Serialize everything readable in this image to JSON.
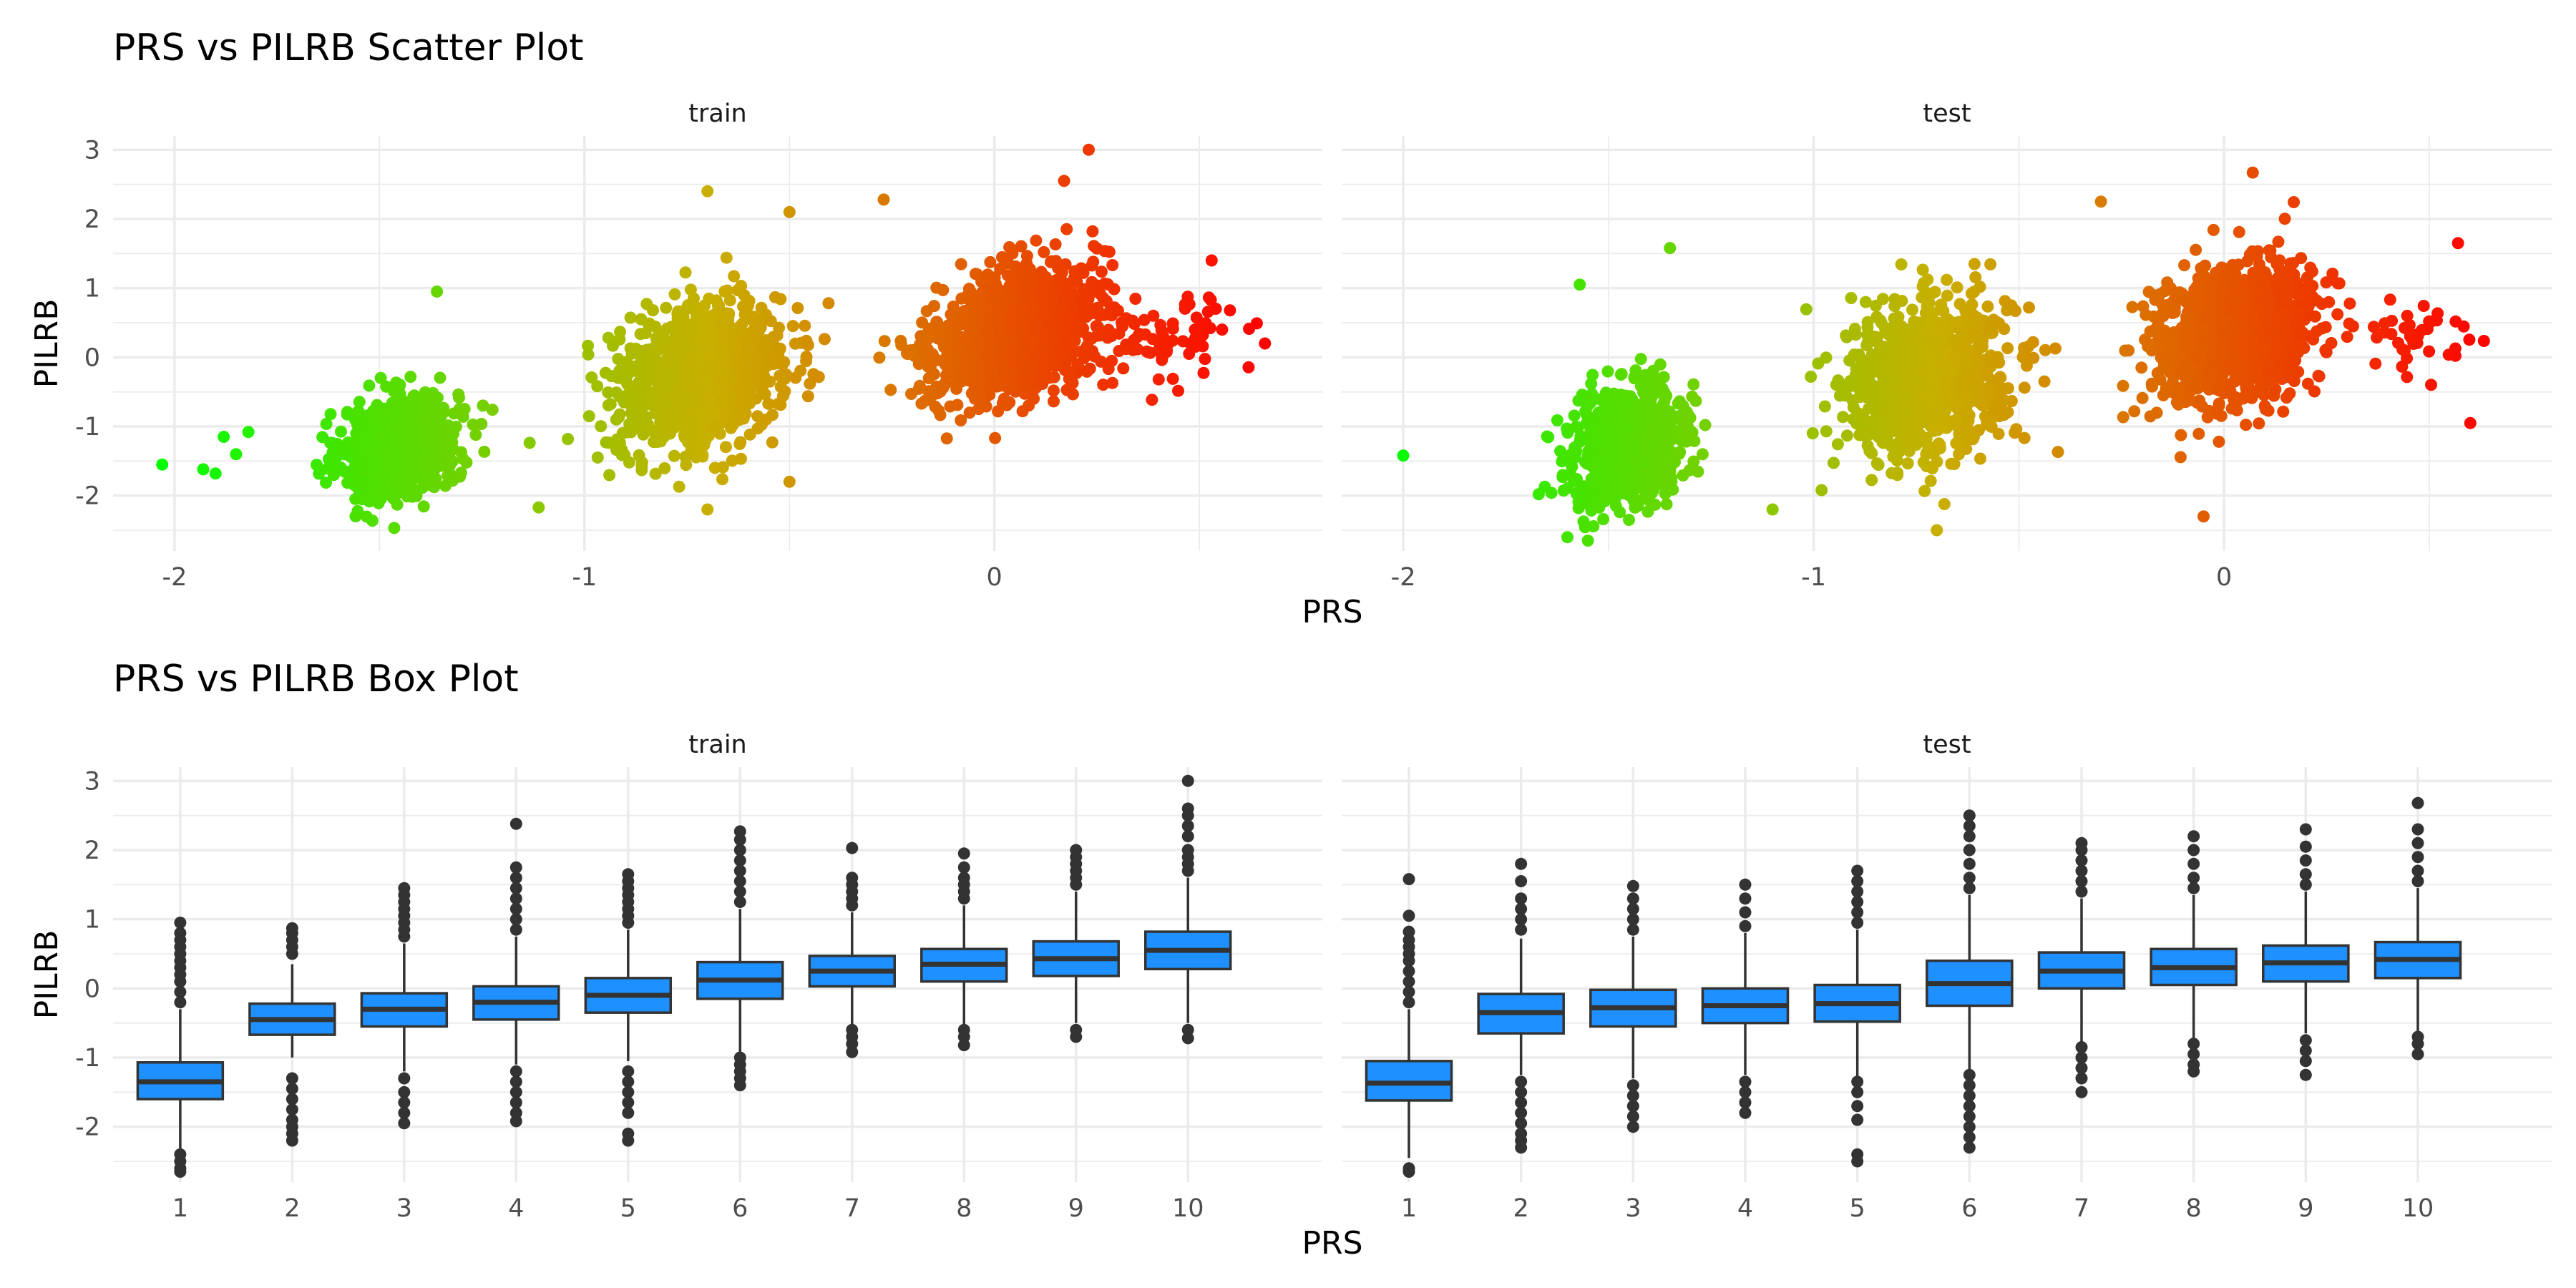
{
  "colors": {
    "low": "#00ff00",
    "high": "#ff0000",
    "box_fill": "#1e90ff",
    "box_line": "#333333",
    "grid": "#ebebeb"
  },
  "chart_data": [
    {
      "type": "scatter",
      "title": "PRS vs PILRB Scatter Plot",
      "xlabel": "PRS",
      "ylabel": "PILRB",
      "facets": [
        "train",
        "test"
      ],
      "xlim": [
        -2.15,
        0.8
      ],
      "ylim": [
        -2.8,
        3.2
      ],
      "xticks": [
        -2,
        -1,
        0
      ],
      "xtick_labels": [
        "-2",
        "-1",
        "0"
      ],
      "yticks": [
        -2,
        -1,
        0,
        1,
        2,
        3
      ],
      "ytick_labels": [
        "-2",
        "-1",
        "0",
        "1",
        "2",
        "3"
      ],
      "color_scale": "green-to-red by PRS",
      "grid": true,
      "series": [
        {
          "facet": "train",
          "clusters": [
            {
              "x_center": -1.45,
              "y_center": -1.3,
              "x_sd": 0.07,
              "y_sd": 0.35,
              "n": 900
            },
            {
              "x_center": -0.72,
              "y_center": -0.3,
              "x_sd": 0.1,
              "y_sd": 0.5,
              "n": 1100
            },
            {
              "x_center": 0.05,
              "y_center": 0.35,
              "x_sd": 0.1,
              "y_sd": 0.45,
              "n": 1200
            },
            {
              "x_center": 0.45,
              "y_center": 0.3,
              "x_sd": 0.08,
              "y_sd": 0.3,
              "n": 70
            }
          ],
          "outliers": [
            [
              -2.03,
              -1.55
            ],
            [
              -1.93,
              -1.62
            ],
            [
              -1.9,
              -1.68
            ],
            [
              -1.88,
              -1.15
            ],
            [
              -1.85,
              -1.4
            ],
            [
              -1.82,
              -1.08
            ],
            [
              -1.36,
              0.95
            ],
            [
              -0.7,
              2.4
            ],
            [
              -0.5,
              2.1
            ],
            [
              -0.27,
              2.28
            ],
            [
              0.23,
              3.0
            ],
            [
              0.17,
              2.55
            ],
            [
              0.53,
              1.4
            ],
            [
              0.66,
              0.2
            ],
            [
              -0.5,
              -1.8
            ],
            [
              -0.7,
              -2.2
            ]
          ]
        },
        {
          "facet": "test",
          "clusters": [
            {
              "x_center": -1.45,
              "y_center": -1.25,
              "x_sd": 0.07,
              "y_sd": 0.4,
              "n": 700
            },
            {
              "x_center": -0.72,
              "y_center": -0.3,
              "x_sd": 0.1,
              "y_sd": 0.55,
              "n": 900
            },
            {
              "x_center": 0.02,
              "y_center": 0.3,
              "x_sd": 0.1,
              "y_sd": 0.5,
              "n": 1000
            },
            {
              "x_center": 0.45,
              "y_center": 0.3,
              "x_sd": 0.07,
              "y_sd": 0.3,
              "n": 40
            }
          ],
          "outliers": [
            [
              -2.0,
              -1.42
            ],
            [
              -1.57,
              1.05
            ],
            [
              -1.35,
              1.58
            ],
            [
              -1.67,
              -1.98
            ],
            [
              -1.6,
              -2.6
            ],
            [
              -1.55,
              -2.65
            ],
            [
              -1.45,
              -2.35
            ],
            [
              -0.3,
              2.25
            ],
            [
              0.07,
              2.67
            ],
            [
              0.57,
              1.65
            ],
            [
              0.6,
              -0.95
            ],
            [
              -0.05,
              -2.3
            ],
            [
              -0.7,
              -2.5
            ],
            [
              -1.1,
              -2.2
            ]
          ]
        }
      ]
    },
    {
      "type": "box",
      "title": "PRS vs PILRB Box Plot",
      "xlabel": "PRS",
      "ylabel": "PILRB",
      "facets": [
        "train",
        "test"
      ],
      "categories": [
        "1",
        "2",
        "3",
        "4",
        "5",
        "6",
        "7",
        "8",
        "9",
        "10"
      ],
      "ylim": [
        -2.8,
        3.2
      ],
      "yticks": [
        -2,
        -1,
        0,
        1,
        2,
        3
      ],
      "ytick_labels": [
        "-2",
        "-1",
        "0",
        "1",
        "2",
        "3"
      ],
      "grid": true,
      "series": [
        {
          "facet": "train",
          "boxes": [
            {
              "q1": -1.6,
              "median": -1.35,
              "q3": -1.07,
              "lower": -2.35,
              "upper": -0.3,
              "outliers": [
                -2.4,
                -2.5,
                -2.6,
                -2.65,
                -0.2,
                -0.05,
                0.1,
                0.2,
                0.3,
                0.4,
                0.5,
                0.6,
                0.7,
                0.8,
                0.95
              ]
            },
            {
              "q1": -0.67,
              "median": -0.45,
              "q3": -0.22,
              "lower": -1.0,
              "upper": 0.35,
              "outliers": [
                -1.3,
                -1.45,
                -1.6,
                -1.75,
                -1.9,
                -2.0,
                -2.1,
                -2.2,
                0.5,
                0.6,
                0.7,
                0.8,
                0.87
              ]
            },
            {
              "q1": -0.55,
              "median": -0.3,
              "q3": -0.07,
              "lower": -1.2,
              "upper": 0.65,
              "outliers": [
                -1.3,
                -1.5,
                -1.65,
                -1.8,
                -1.95,
                0.75,
                0.85,
                0.95,
                1.05,
                1.15,
                1.25,
                1.35,
                1.45
              ]
            },
            {
              "q1": -0.45,
              "median": -0.2,
              "q3": 0.03,
              "lower": -1.1,
              "upper": 0.75,
              "outliers": [
                -1.2,
                -1.35,
                -1.5,
                -1.65,
                -1.8,
                -1.92,
                0.85,
                1.0,
                1.15,
                1.3,
                1.45,
                1.6,
                1.75,
                2.38
              ]
            },
            {
              "q1": -0.35,
              "median": -0.1,
              "q3": 0.15,
              "lower": -1.05,
              "upper": 0.85,
              "outliers": [
                -1.2,
                -1.35,
                -1.5,
                -1.65,
                -1.8,
                -2.1,
                -2.2,
                0.95,
                1.05,
                1.15,
                1.25,
                1.35,
                1.45,
                1.55,
                1.65
              ]
            },
            {
              "q1": -0.15,
              "median": 0.12,
              "q3": 0.38,
              "lower": -0.95,
              "upper": 1.15,
              "outliers": [
                -1.0,
                -1.1,
                -1.2,
                -1.3,
                -1.4,
                1.25,
                1.4,
                1.55,
                1.7,
                1.85,
                2.0,
                2.15,
                2.27
              ]
            },
            {
              "q1": 0.03,
              "median": 0.25,
              "q3": 0.47,
              "lower": -0.55,
              "upper": 1.1,
              "outliers": [
                -0.6,
                -0.7,
                -0.8,
                -0.92,
                1.2,
                1.3,
                1.4,
                1.5,
                1.6,
                2.03
              ]
            },
            {
              "q1": 0.1,
              "median": 0.35,
              "q3": 0.57,
              "lower": -0.55,
              "upper": 1.2,
              "outliers": [
                -0.6,
                -0.7,
                -0.82,
                1.3,
                1.4,
                1.5,
                1.6,
                1.75,
                1.95
              ]
            },
            {
              "q1": 0.18,
              "median": 0.43,
              "q3": 0.68,
              "lower": -0.5,
              "upper": 1.4,
              "outliers": [
                -0.6,
                -0.7,
                1.5,
                1.6,
                1.7,
                1.8,
                1.9,
                2.0
              ]
            },
            {
              "q1": 0.28,
              "median": 0.55,
              "q3": 0.82,
              "lower": -0.5,
              "upper": 1.6,
              "outliers": [
                -0.6,
                -0.72,
                1.7,
                1.8,
                1.9,
                2.0,
                2.2,
                2.35,
                2.5,
                2.6,
                3.0
              ]
            }
          ]
        },
        {
          "facet": "test",
          "boxes": [
            {
              "q1": -1.62,
              "median": -1.37,
              "q3": -1.05,
              "lower": -2.45,
              "upper": -0.3,
              "outliers": [
                -2.6,
                -2.65,
                -0.2,
                -0.05,
                0.1,
                0.25,
                0.4,
                0.5,
                0.6,
                0.7,
                0.82,
                1.05,
                1.58
              ]
            },
            {
              "q1": -0.65,
              "median": -0.35,
              "q3": -0.08,
              "lower": -1.25,
              "upper": 0.72,
              "outliers": [
                -1.35,
                -1.5,
                -1.65,
                -1.8,
                -1.95,
                -2.1,
                -2.2,
                -2.3,
                0.85,
                1.0,
                1.15,
                1.3,
                1.55,
                1.8
              ]
            },
            {
              "q1": -0.55,
              "median": -0.28,
              "q3": -0.02,
              "lower": -1.3,
              "upper": 0.75,
              "outliers": [
                -1.4,
                -1.55,
                -1.7,
                -1.85,
                -2.0,
                0.85,
                1.0,
                1.15,
                1.3,
                1.48
              ]
            },
            {
              "q1": -0.5,
              "median": -0.25,
              "q3": 0.0,
              "lower": -1.25,
              "upper": 0.8,
              "outliers": [
                -1.35,
                -1.5,
                -1.65,
                -1.8,
                0.9,
                1.1,
                1.3,
                1.5
              ]
            },
            {
              "q1": -0.48,
              "median": -0.22,
              "q3": 0.05,
              "lower": -1.3,
              "upper": 0.85,
              "outliers": [
                -1.35,
                -1.5,
                -1.7,
                -1.9,
                -2.4,
                -2.5,
                0.95,
                1.1,
                1.25,
                1.4,
                1.55,
                1.7
              ]
            },
            {
              "q1": -0.25,
              "median": 0.07,
              "q3": 0.4,
              "lower": -1.2,
              "upper": 1.35,
              "outliers": [
                -1.25,
                -1.4,
                -1.55,
                -1.7,
                -1.85,
                -2.0,
                -2.15,
                -2.3,
                1.45,
                1.6,
                1.8,
                2.0,
                2.2,
                2.35,
                2.5
              ]
            },
            {
              "q1": 0.0,
              "median": 0.25,
              "q3": 0.52,
              "lower": -0.8,
              "upper": 1.3,
              "outliers": [
                -0.85,
                -1.0,
                -1.15,
                -1.3,
                -1.5,
                1.4,
                1.55,
                1.7,
                1.85,
                2.0,
                2.1
              ]
            },
            {
              "q1": 0.05,
              "median": 0.3,
              "q3": 0.57,
              "lower": -0.72,
              "upper": 1.35,
              "outliers": [
                -0.8,
                -0.95,
                -1.1,
                -1.2,
                1.45,
                1.6,
                1.8,
                2.0,
                2.2
              ]
            },
            {
              "q1": 0.1,
              "median": 0.37,
              "q3": 0.62,
              "lower": -0.65,
              "upper": 1.4,
              "outliers": [
                -0.75,
                -0.9,
                -1.05,
                -1.25,
                1.5,
                1.65,
                1.85,
                2.05,
                2.3
              ]
            },
            {
              "q1": 0.15,
              "median": 0.42,
              "q3": 0.67,
              "lower": -0.62,
              "upper": 1.45,
              "outliers": [
                -0.7,
                -0.8,
                -0.95,
                1.55,
                1.7,
                1.9,
                2.1,
                2.3,
                2.68
              ]
            }
          ]
        }
      ]
    }
  ]
}
